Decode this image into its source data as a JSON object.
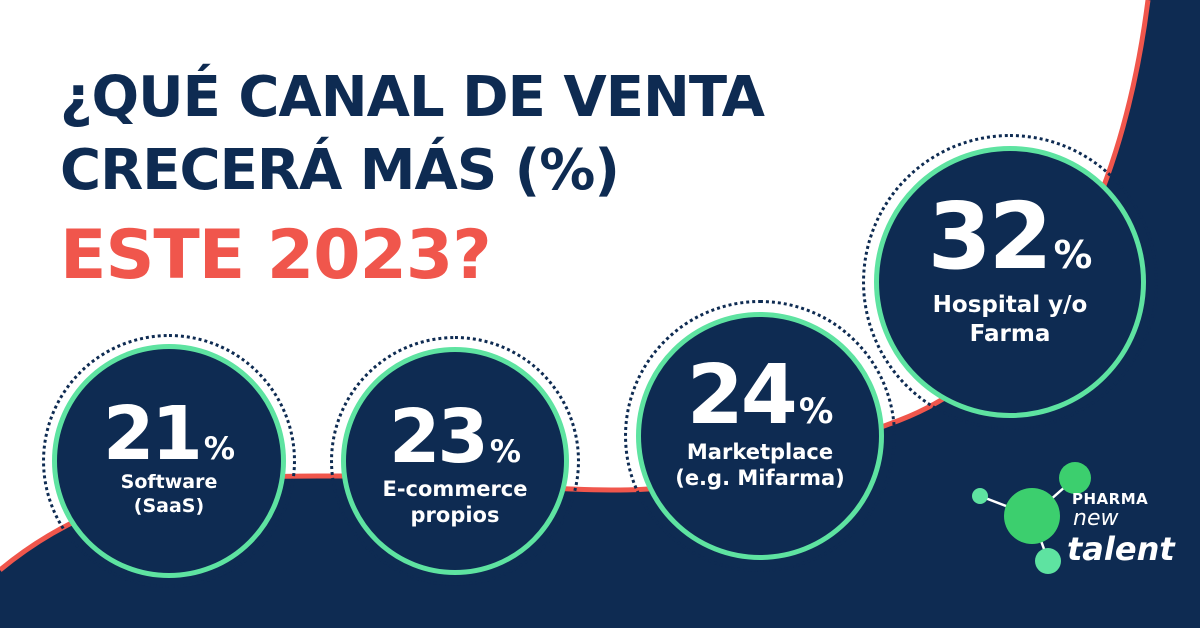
{
  "headline": {
    "line1": "¿QUÉ CANAL DE VENTA",
    "line2": "CRECERÁ MÁS (%)",
    "line3": "ESTE 2023?"
  },
  "stats": [
    {
      "value": "21",
      "unit": "%",
      "label_line1": "Software",
      "label_line2": "(SaaS)"
    },
    {
      "value": "23",
      "unit": "%",
      "label_line1": "E-commerce",
      "label_line2": "propios"
    },
    {
      "value": "24",
      "unit": "%",
      "label_line1": "Marketplace",
      "label_line2": "(e.g. Mifarma)"
    },
    {
      "value": "32",
      "unit": "%",
      "label_line1": "Hospital y/o",
      "label_line2": "Farma"
    }
  ],
  "logo": {
    "line1": "PHARMA",
    "line2": "new",
    "line3": "talent"
  },
  "colors": {
    "navy": "#0e2b52",
    "coral": "#f0564c",
    "mint": "#5ee3a1",
    "white": "#ffffff"
  }
}
